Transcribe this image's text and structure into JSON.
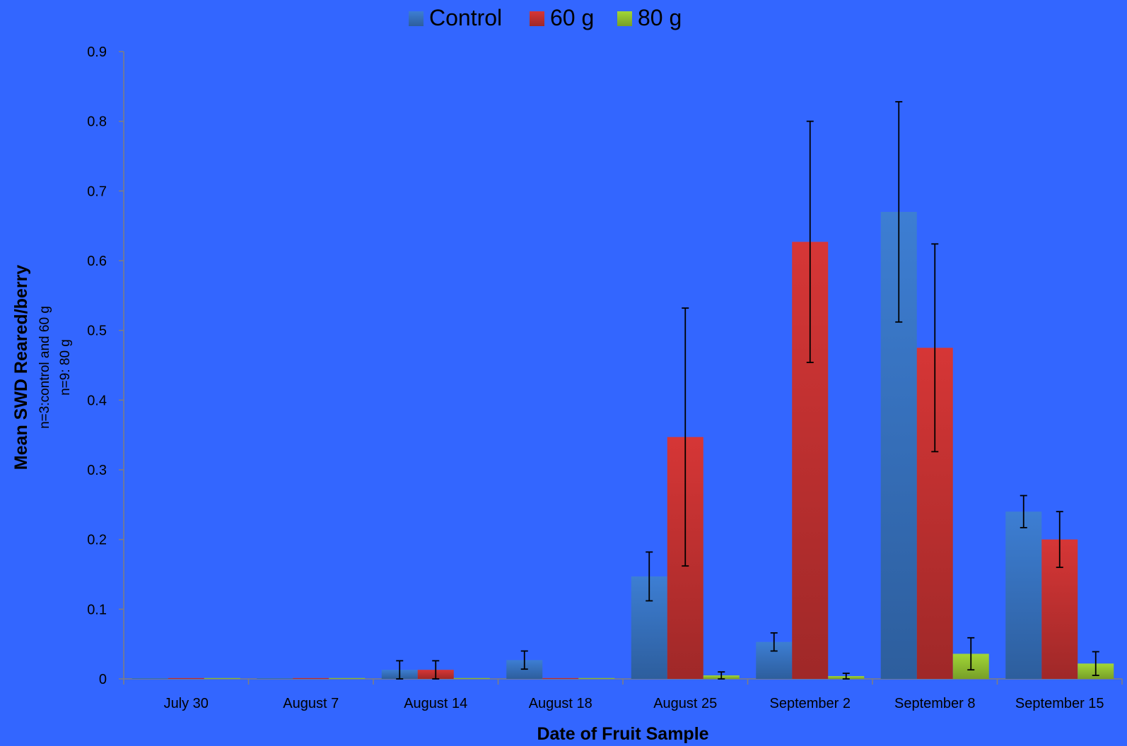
{
  "chart_data": {
    "type": "bar",
    "categories": [
      "July 30",
      "August 7",
      "August 14",
      "August 18",
      "August 25",
      "September 2",
      "September 8",
      "September 15"
    ],
    "series": [
      {
        "name": "Control",
        "color": "#3a78c9",
        "values": [
          0,
          0,
          0.013,
          0.027,
          0.147,
          0.053,
          0.67,
          0.24
        ],
        "errors": [
          0,
          0,
          0.013,
          0.013,
          0.035,
          0.013,
          0.158,
          0.023
        ]
      },
      {
        "name": "60 g",
        "color": "#cc3333",
        "values": [
          0,
          0,
          0.013,
          0,
          0.347,
          0.627,
          0.475,
          0.2
        ],
        "errors": [
          0,
          0,
          0.013,
          0,
          0.185,
          0.173,
          0.149,
          0.04
        ]
      },
      {
        "name": "80 g",
        "color": "#99cc33",
        "values": [
          0,
          0,
          0,
          0,
          0.005,
          0.004,
          0.036,
          0.022
        ],
        "errors": [
          0,
          0,
          0,
          0,
          0.005,
          0.004,
          0.023,
          0.017
        ]
      }
    ],
    "title": "",
    "xlabel": "Date of Fruit Sample",
    "ylabel": "Mean SWD Reared/berry",
    "ylabel_sub1": "n=3:control and 60 g",
    "ylabel_sub2": "n=9: 80 g",
    "ylim": [
      0,
      0.9
    ],
    "yticks": [
      "0",
      "0.1",
      "0.2",
      "0.3",
      "0.4",
      "0.5",
      "0.6",
      "0.7",
      "0.8",
      "0.9"
    ],
    "grid": false,
    "legend_position": "top-center",
    "background_color": "#3366ff"
  }
}
